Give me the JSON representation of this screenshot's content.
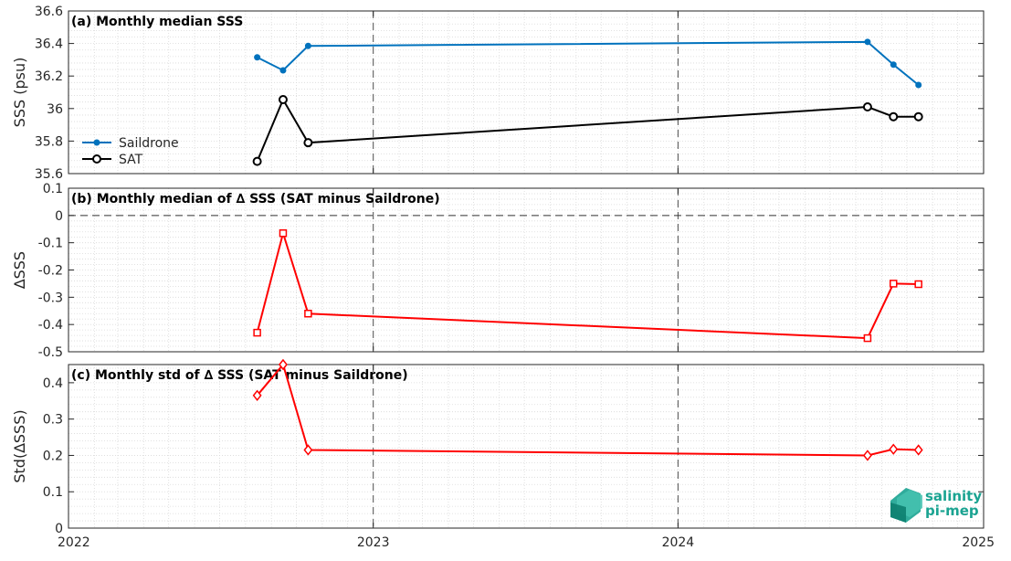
{
  "chart_data": [
    {
      "type": "line",
      "title": "(a) Monthly median SSS",
      "ylabel": "SSS (psu)",
      "xlim": [
        "2022-01-01",
        "2025-01-01"
      ],
      "ylim": [
        35.6,
        36.6
      ],
      "yticks": [
        35.6,
        35.8,
        36,
        36.2,
        36.4,
        36.6
      ],
      "ytick_labels": [
        "35.6",
        "35.8",
        "36",
        "36.2",
        "36.4",
        "36.6"
      ],
      "grid": true,
      "legend": "left",
      "series": [
        {
          "name": "Saildrone",
          "color": "#0072bd",
          "marker": "dot",
          "x": [
            "2022-08-15",
            "2022-09-15",
            "2022-10-15",
            "2024-08-15",
            "2024-09-15",
            "2024-10-15"
          ],
          "y": [
            36.315,
            36.235,
            36.385,
            36.41,
            36.27,
            36.145
          ]
        },
        {
          "name": "SAT",
          "color": "#000000",
          "marker": "circle",
          "x": [
            "2022-08-15",
            "2022-09-15",
            "2022-10-15",
            "2024-08-15",
            "2024-09-15",
            "2024-10-15"
          ],
          "y": [
            35.675,
            36.055,
            35.79,
            36.01,
            35.95,
            35.95
          ]
        }
      ]
    },
    {
      "type": "line",
      "title": "(b) Monthly median of ∆ SSS (SAT minus Saildrone)",
      "ylabel": "∆SSS",
      "xlim": [
        "2022-01-01",
        "2025-01-01"
      ],
      "ylim": [
        -0.5,
        0.1
      ],
      "yticks": [
        -0.5,
        -0.4,
        -0.3,
        -0.2,
        -0.1,
        0,
        0.1
      ],
      "ytick_labels": [
        "-0.5",
        "-0.4",
        "-0.3",
        "-0.2",
        "-0.1",
        "0",
        "0.1"
      ],
      "grid": true,
      "zero_line": true,
      "series": [
        {
          "color": "#ff0000",
          "marker": "square",
          "x": [
            "2022-08-15",
            "2022-09-15",
            "2022-10-15",
            "2024-08-15",
            "2024-09-15",
            "2024-10-15"
          ],
          "y": [
            -0.43,
            -0.065,
            -0.36,
            -0.45,
            -0.25,
            -0.252
          ]
        }
      ]
    },
    {
      "type": "line",
      "title": "(c) Monthly std of ∆ SSS (SAT minus Saildrone)",
      "ylabel": "Std(∆SSS)",
      "xlim": [
        "2022-01-01",
        "2025-01-01"
      ],
      "ylim": [
        0,
        0.45
      ],
      "yticks": [
        0,
        0.1,
        0.2,
        0.3,
        0.4
      ],
      "ytick_labels": [
        "0",
        "0.1",
        "0.2",
        "0.3",
        "0.4"
      ],
      "xticks": [
        "2022-01-01",
        "2023-01-01",
        "2024-01-01",
        "2025-01-01"
      ],
      "xtick_labels": [
        "2022",
        "2023",
        "2024",
        "2025"
      ],
      "grid": true,
      "series": [
        {
          "color": "#ff0000",
          "marker": "diamond",
          "x": [
            "2022-08-15",
            "2022-09-15",
            "2022-10-15",
            "2024-08-15",
            "2024-09-15",
            "2024-10-15"
          ],
          "y": [
            0.365,
            0.45,
            0.215,
            0.2,
            0.217,
            0.215
          ]
        }
      ]
    }
  ],
  "logo": {
    "line1": "salinity",
    "line2": "pi-mep",
    "color": "#1aa391"
  }
}
